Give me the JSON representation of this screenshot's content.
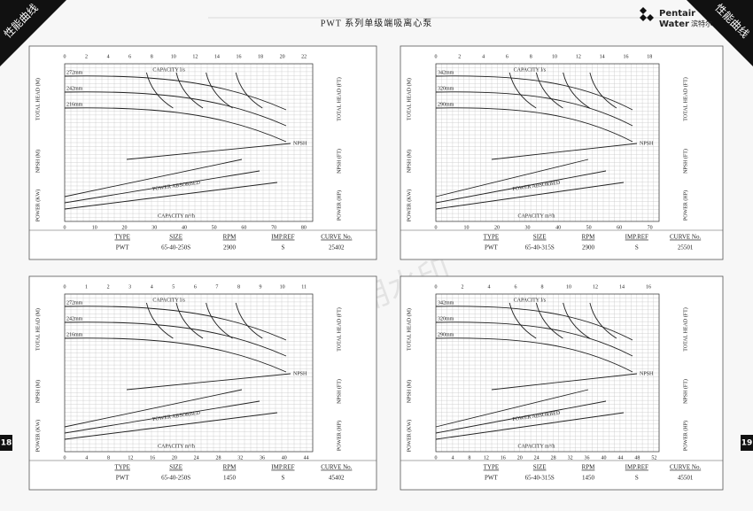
{
  "header": {
    "title": "PWT 系列单级端吸离心泵",
    "logo_line1": "Pentair",
    "logo_line2": "Water",
    "logo_cn": "滨特尔"
  },
  "side_label": "性能曲线",
  "page_left": "18",
  "page_right": "19",
  "watermark": "试用水印",
  "table_headers": [
    "TYPE",
    "SIZE",
    "RPM",
    "IMP.REF",
    "CURVE No."
  ],
  "axis_titles": {
    "head_m": "TOTAL HEAD (M)",
    "head_ft": "TOTAL HEAD (FT)",
    "npsh_m": "NPSH (M)",
    "npsh_ft": "NPSH (FT)",
    "power_kw": "POWER (KW)",
    "power_hp": "POWER (HP)",
    "capacity_top": "CAPACITY l/s",
    "capacity_bottom": "CAPACITY m³/h",
    "npsh": "NPSH",
    "power": "POWER ABSORBED"
  },
  "panels": [
    {
      "top_ticks": [
        0,
        2,
        4,
        6,
        8,
        10,
        12,
        14,
        16,
        18,
        20,
        22
      ],
      "bottom_ticks": [
        0,
        10,
        20,
        30,
        40,
        50,
        60,
        70,
        80
      ],
      "impellers": [
        "272mm",
        "242mm",
        "216mm"
      ],
      "spec": [
        "PWT",
        "65-40-250S",
        "2900",
        "S",
        "25402"
      ]
    },
    {
      "top_ticks": [
        0,
        2,
        4,
        6,
        8,
        10,
        12,
        14,
        16,
        18
      ],
      "bottom_ticks": [
        0,
        10,
        20,
        30,
        40,
        50,
        60,
        70
      ],
      "impellers": [
        "342mm",
        "320mm",
        "290mm"
      ],
      "spec": [
        "PWT",
        "65-40-315S",
        "2900",
        "S",
        "25501"
      ]
    },
    {
      "top_ticks": [
        0,
        1,
        2,
        3,
        4,
        5,
        6,
        7,
        8,
        9,
        10,
        11
      ],
      "bottom_ticks": [
        0,
        4,
        8,
        12,
        16,
        20,
        24,
        28,
        32,
        36,
        40,
        44
      ],
      "impellers": [
        "272mm",
        "242mm",
        "216mm"
      ],
      "spec": [
        "PWT",
        "65-40-250S",
        "1450",
        "S",
        "45402"
      ]
    },
    {
      "top_ticks": [
        0,
        2,
        4,
        6,
        8,
        10,
        12,
        14,
        16
      ],
      "bottom_ticks": [
        0,
        4,
        8,
        12,
        16,
        20,
        24,
        28,
        32,
        36,
        40,
        44,
        48,
        52
      ],
      "impellers": [
        "342mm",
        "320mm",
        "290mm"
      ],
      "spec": [
        "PWT",
        "65-40-315S",
        "1450",
        "S",
        "45501"
      ]
    }
  ]
}
